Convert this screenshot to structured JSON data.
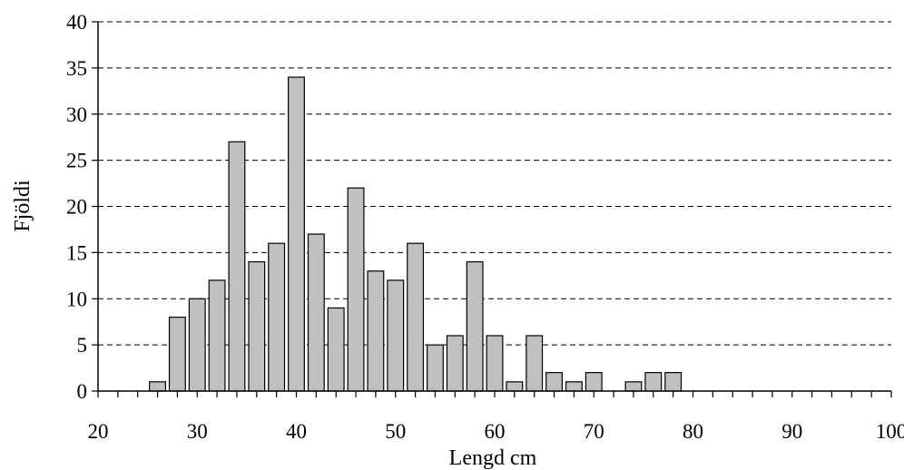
{
  "chart_data": {
    "type": "bar",
    "title": "",
    "xlabel": "Lengd cm",
    "ylabel": "Fjöldi",
    "xlim": [
      20,
      100
    ],
    "ylim": [
      0,
      40
    ],
    "x_ticks": [
      20,
      30,
      40,
      50,
      60,
      70,
      80,
      90,
      100
    ],
    "y_ticks": [
      0,
      5,
      10,
      15,
      20,
      25,
      30,
      35,
      40
    ],
    "grid": "horizontal-dashed",
    "bar_color": "#c0c0c0",
    "x": [
      26,
      28,
      30,
      32,
      34,
      36,
      38,
      40,
      42,
      44,
      46,
      48,
      50,
      52,
      54,
      56,
      58,
      60,
      62,
      64,
      66,
      68,
      70,
      72,
      74,
      76,
      78
    ],
    "values": [
      1,
      8,
      10,
      12,
      27,
      14,
      16,
      34,
      17,
      9,
      22,
      13,
      12,
      16,
      5,
      6,
      14,
      6,
      1,
      6,
      2,
      1,
      2,
      0,
      1,
      2,
      2
    ]
  }
}
